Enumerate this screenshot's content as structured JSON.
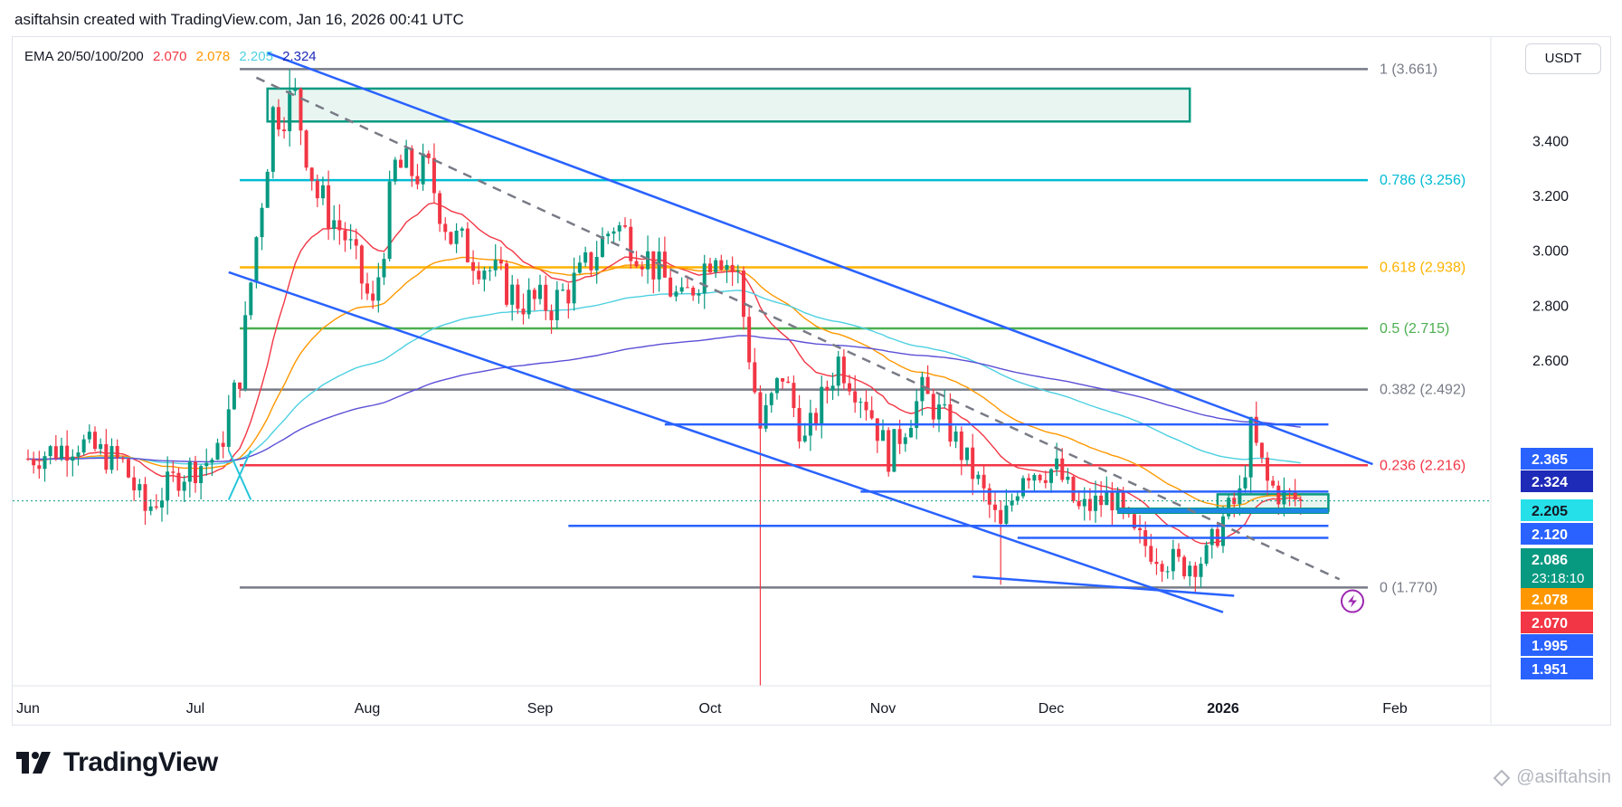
{
  "header": {
    "caption": "asiftahsin created with TradingView.com, Jan 16, 2026 00:41 UTC"
  },
  "legend": {
    "title": "EMA 20/50/100/200",
    "values": [
      {
        "text": "2.070",
        "color": "#f23645"
      },
      {
        "text": "2.078",
        "color": "#ff9800"
      },
      {
        "text": "2.205",
        "color": "#4dd0e1"
      },
      {
        "text": "2.324",
        "color": "#1e2ab8"
      }
    ]
  },
  "currency_button": "USDT",
  "branding": {
    "logo_text": "TradingView",
    "watermark": "@asiftahsin"
  },
  "chart_data": {
    "type": "candlestick",
    "x_axis_labels": [
      {
        "label": "Jun",
        "date": "2025-06-01",
        "bold": false
      },
      {
        "label": "Jul",
        "date": "2025-07-01",
        "bold": false
      },
      {
        "label": "Aug",
        "date": "2025-08-01",
        "bold": false
      },
      {
        "label": "Sep",
        "date": "2025-09-01",
        "bold": false
      },
      {
        "label": "Oct",
        "date": "2025-10-01",
        "bold": false
      },
      {
        "label": "Nov",
        "date": "2025-11-01",
        "bold": false
      },
      {
        "label": "Dec",
        "date": "2025-12-01",
        "bold": false
      },
      {
        "label": "2026",
        "date": "2026-01-01",
        "bold": true
      },
      {
        "label": "Feb",
        "date": "2026-02-01",
        "bold": false
      }
    ],
    "y_ticks": [
      "3.400",
      "3.200",
      "3.000",
      "2.800",
      "2.600"
    ],
    "fib_levels": [
      {
        "label": "1 (3.661)",
        "price": 3.661,
        "color": "#787b86"
      },
      {
        "label": "0.786 (3.256)",
        "price": 3.256,
        "color": "#00bcd4"
      },
      {
        "label": "0.618 (2.938)",
        "price": 2.938,
        "color": "#ffb300"
      },
      {
        "label": "0.5 (2.715)",
        "price": 2.715,
        "color": "#4caf50"
      },
      {
        "label": "0.382 (2.492)",
        "price": 2.492,
        "color": "#787b86"
      },
      {
        "label": "0.236 (2.216)",
        "price": 2.216,
        "color": "#f23645"
      },
      {
        "label": "0 (1.770)",
        "price": 1.77,
        "color": "#787b86"
      }
    ],
    "price_badges": [
      {
        "text": "2.365",
        "price": 2.365,
        "bg": "#2962ff",
        "fg": "#ffffff"
      },
      {
        "text": "2.324",
        "price": 2.324,
        "bg": "#1e2ab8",
        "fg": "#ffffff"
      },
      {
        "text": "2.205",
        "price": 2.205,
        "bg": "#26e0e9",
        "fg": "#131722"
      },
      {
        "text": "2.120",
        "price": 2.12,
        "bg": "#2962ff",
        "fg": "#ffffff"
      },
      {
        "text": "2.086",
        "sub": "23:18:10",
        "price": 2.086,
        "bg": "#089981",
        "fg": "#ffffff"
      },
      {
        "text": "2.078",
        "price": 2.078,
        "bg": "#ff9800",
        "fg": "#ffffff"
      },
      {
        "text": "2.070",
        "price": 2.07,
        "bg": "#f23645",
        "fg": "#ffffff"
      },
      {
        "text": "1.995",
        "price": 1.995,
        "bg": "#2962ff",
        "fg": "#ffffff"
      },
      {
        "text": "1.951",
        "price": 1.951,
        "bg": "#2962ff",
        "fg": "#ffffff"
      }
    ],
    "last_price": 2.086,
    "countdown": "23:18:10",
    "ema": [
      {
        "name": "EMA 20",
        "value": 2.07,
        "color": "#f23645"
      },
      {
        "name": "EMA 50",
        "value": 2.078,
        "color": "#ff9800"
      },
      {
        "name": "EMA 100",
        "value": 2.205,
        "color": "#4dd0e1"
      },
      {
        "name": "EMA 200",
        "value": 2.324,
        "color": "#1e2ab8"
      }
    ],
    "support_resistance_lines": [
      2.365,
      2.12,
      1.995,
      1.951
    ],
    "zones": [
      {
        "from_price": 3.47,
        "to_price": 3.59,
        "start": "2025-07-14",
        "end": "2025-12-26"
      },
      {
        "from_price": 2.05,
        "to_price": 2.11,
        "start": "2025-12-31",
        "end": "2026-01-20"
      }
    ],
    "descending_channel": {
      "upper": [
        {
          "date": "2025-07-14",
          "price": 3.72
        },
        {
          "date": "2026-01-28",
          "price": 2.22
        }
      ],
      "lower": [
        {
          "date": "2025-07-07",
          "price": 2.92
        },
        {
          "date": "2026-01-01",
          "price": 1.68
        }
      ]
    },
    "colors": {
      "up": "#089981",
      "down": "#f23645",
      "channel": "#2962ff",
      "zone_border": "#089981",
      "zone_fill": "#e8f5f1"
    }
  }
}
